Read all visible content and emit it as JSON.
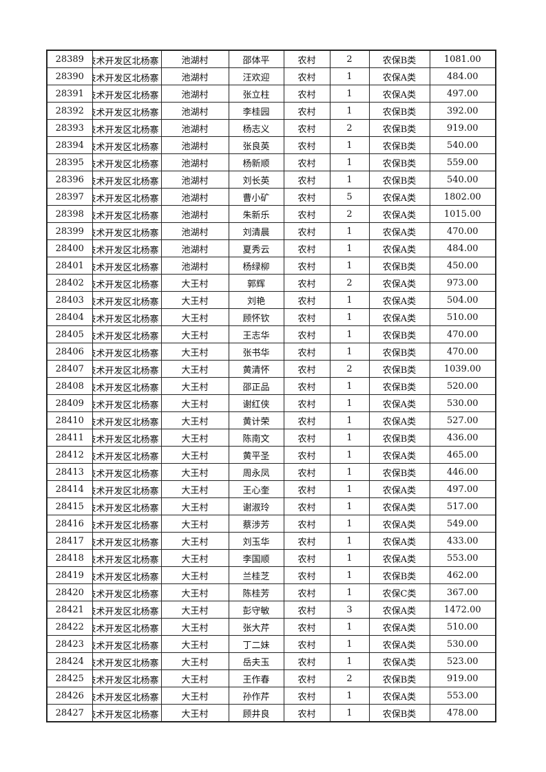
{
  "rows": [
    {
      "id": "28389",
      "area": "技术开发区北杨寨",
      "village": "池湖村",
      "name": "邵体平",
      "type": "农村",
      "count": "2",
      "category": "农保B类",
      "amount": "1081.00"
    },
    {
      "id": "28390",
      "area": "技术开发区北杨寨",
      "village": "池湖村",
      "name": "汪欢迎",
      "type": "农村",
      "count": "1",
      "category": "农保A类",
      "amount": "484.00"
    },
    {
      "id": "28391",
      "area": "技术开发区北杨寨",
      "village": "池湖村",
      "name": "张立柱",
      "type": "农村",
      "count": "1",
      "category": "农保A类",
      "amount": "497.00"
    },
    {
      "id": "28392",
      "area": "技术开发区北杨寨",
      "village": "池湖村",
      "name": "李桂园",
      "type": "农村",
      "count": "1",
      "category": "农保B类",
      "amount": "392.00"
    },
    {
      "id": "28393",
      "area": "技术开发区北杨寨",
      "village": "池湖村",
      "name": "杨志义",
      "type": "农村",
      "count": "2",
      "category": "农保B类",
      "amount": "919.00"
    },
    {
      "id": "28394",
      "area": "技术开发区北杨寨",
      "village": "池湖村",
      "name": "张良英",
      "type": "农村",
      "count": "1",
      "category": "农保B类",
      "amount": "540.00"
    },
    {
      "id": "28395",
      "area": "技术开发区北杨寨",
      "village": "池湖村",
      "name": "杨新顺",
      "type": "农村",
      "count": "1",
      "category": "农保B类",
      "amount": "559.00"
    },
    {
      "id": "28396",
      "area": "技术开发区北杨寨",
      "village": "池湖村",
      "name": "刘长英",
      "type": "农村",
      "count": "1",
      "category": "农保B类",
      "amount": "540.00"
    },
    {
      "id": "28397",
      "area": "技术开发区北杨寨",
      "village": "池湖村",
      "name": "曹小矿",
      "type": "农村",
      "count": "5",
      "category": "农保A类",
      "amount": "1802.00"
    },
    {
      "id": "28398",
      "area": "技术开发区北杨寨",
      "village": "池湖村",
      "name": "朱新乐",
      "type": "农村",
      "count": "2",
      "category": "农保A类",
      "amount": "1015.00"
    },
    {
      "id": "28399",
      "area": "技术开发区北杨寨",
      "village": "池湖村",
      "name": "刘清晨",
      "type": "农村",
      "count": "1",
      "category": "农保A类",
      "amount": "470.00"
    },
    {
      "id": "28400",
      "area": "技术开发区北杨寨",
      "village": "池湖村",
      "name": "夏秀云",
      "type": "农村",
      "count": "1",
      "category": "农保A类",
      "amount": "484.00"
    },
    {
      "id": "28401",
      "area": "技术开发区北杨寨",
      "village": "池湖村",
      "name": "杨绿柳",
      "type": "农村",
      "count": "1",
      "category": "农保B类",
      "amount": "450.00"
    },
    {
      "id": "28402",
      "area": "技术开发区北杨寨",
      "village": "大王村",
      "name": "郭辉",
      "type": "农村",
      "count": "2",
      "category": "农保A类",
      "amount": "973.00"
    },
    {
      "id": "28403",
      "area": "技术开发区北杨寨",
      "village": "大王村",
      "name": "刘艳",
      "type": "农村",
      "count": "1",
      "category": "农保A类",
      "amount": "504.00"
    },
    {
      "id": "28404",
      "area": "技术开发区北杨寨",
      "village": "大王村",
      "name": "顾怀钦",
      "type": "农村",
      "count": "1",
      "category": "农保A类",
      "amount": "510.00"
    },
    {
      "id": "28405",
      "area": "技术开发区北杨寨",
      "village": "大王村",
      "name": "王志华",
      "type": "农村",
      "count": "1",
      "category": "农保B类",
      "amount": "470.00"
    },
    {
      "id": "28406",
      "area": "技术开发区北杨寨",
      "village": "大王村",
      "name": "张书华",
      "type": "农村",
      "count": "1",
      "category": "农保B类",
      "amount": "470.00"
    },
    {
      "id": "28407",
      "area": "技术开发区北杨寨",
      "village": "大王村",
      "name": "黄清怀",
      "type": "农村",
      "count": "2",
      "category": "农保B类",
      "amount": "1039.00"
    },
    {
      "id": "28408",
      "area": "技术开发区北杨寨",
      "village": "大王村",
      "name": "邵正品",
      "type": "农村",
      "count": "1",
      "category": "农保B类",
      "amount": "520.00"
    },
    {
      "id": "28409",
      "area": "技术开发区北杨寨",
      "village": "大王村",
      "name": "谢红侠",
      "type": "农村",
      "count": "1",
      "category": "农保A类",
      "amount": "530.00"
    },
    {
      "id": "28410",
      "area": "技术开发区北杨寨",
      "village": "大王村",
      "name": "黄计荣",
      "type": "农村",
      "count": "1",
      "category": "农保A类",
      "amount": "527.00"
    },
    {
      "id": "28411",
      "area": "技术开发区北杨寨",
      "village": "大王村",
      "name": "陈南文",
      "type": "农村",
      "count": "1",
      "category": "农保B类",
      "amount": "436.00"
    },
    {
      "id": "28412",
      "area": "技术开发区北杨寨",
      "village": "大王村",
      "name": "黄平圣",
      "type": "农村",
      "count": "1",
      "category": "农保A类",
      "amount": "465.00"
    },
    {
      "id": "28413",
      "area": "技术开发区北杨寨",
      "village": "大王村",
      "name": "周永凤",
      "type": "农村",
      "count": "1",
      "category": "农保B类",
      "amount": "446.00"
    },
    {
      "id": "28414",
      "area": "技术开发区北杨寨",
      "village": "大王村",
      "name": "王心奎",
      "type": "农村",
      "count": "1",
      "category": "农保A类",
      "amount": "497.00"
    },
    {
      "id": "28415",
      "area": "技术开发区北杨寨",
      "village": "大王村",
      "name": "谢淑玲",
      "type": "农村",
      "count": "1",
      "category": "农保A类",
      "amount": "517.00"
    },
    {
      "id": "28416",
      "area": "技术开发区北杨寨",
      "village": "大王村",
      "name": "蔡涉芳",
      "type": "农村",
      "count": "1",
      "category": "农保A类",
      "amount": "549.00"
    },
    {
      "id": "28417",
      "area": "技术开发区北杨寨",
      "village": "大王村",
      "name": "刘玉华",
      "type": "农村",
      "count": "1",
      "category": "农保A类",
      "amount": "433.00"
    },
    {
      "id": "28418",
      "area": "技术开发区北杨寨",
      "village": "大王村",
      "name": "李国顺",
      "type": "农村",
      "count": "1",
      "category": "农保A类",
      "amount": "553.00"
    },
    {
      "id": "28419",
      "area": "技术开发区北杨寨",
      "village": "大王村",
      "name": "兰桂芝",
      "type": "农村",
      "count": "1",
      "category": "农保B类",
      "amount": "462.00"
    },
    {
      "id": "28420",
      "area": "技术开发区北杨寨",
      "village": "大王村",
      "name": "陈桂芳",
      "type": "农村",
      "count": "1",
      "category": "农保C类",
      "amount": "367.00"
    },
    {
      "id": "28421",
      "area": "技术开发区北杨寨",
      "village": "大王村",
      "name": "彭守敏",
      "type": "农村",
      "count": "3",
      "category": "农保A类",
      "amount": "1472.00"
    },
    {
      "id": "28422",
      "area": "技术开发区北杨寨",
      "village": "大王村",
      "name": "张大芹",
      "type": "农村",
      "count": "1",
      "category": "农保A类",
      "amount": "510.00"
    },
    {
      "id": "28423",
      "area": "技术开发区北杨寨",
      "village": "大王村",
      "name": "丁二妹",
      "type": "农村",
      "count": "1",
      "category": "农保A类",
      "amount": "530.00"
    },
    {
      "id": "28424",
      "area": "技术开发区北杨寨",
      "village": "大王村",
      "name": "岳夫玉",
      "type": "农村",
      "count": "1",
      "category": "农保A类",
      "amount": "523.00"
    },
    {
      "id": "28425",
      "area": "技术开发区北杨寨",
      "village": "大王村",
      "name": "王作春",
      "type": "农村",
      "count": "2",
      "category": "农保B类",
      "amount": "919.00"
    },
    {
      "id": "28426",
      "area": "技术开发区北杨寨",
      "village": "大王村",
      "name": "孙作芹",
      "type": "农村",
      "count": "1",
      "category": "农保A类",
      "amount": "553.00"
    },
    {
      "id": "28427",
      "area": "技术开发区北杨寨",
      "village": "大王村",
      "name": "顾井良",
      "type": "农村",
      "count": "1",
      "category": "农保B类",
      "amount": "478.00"
    }
  ]
}
